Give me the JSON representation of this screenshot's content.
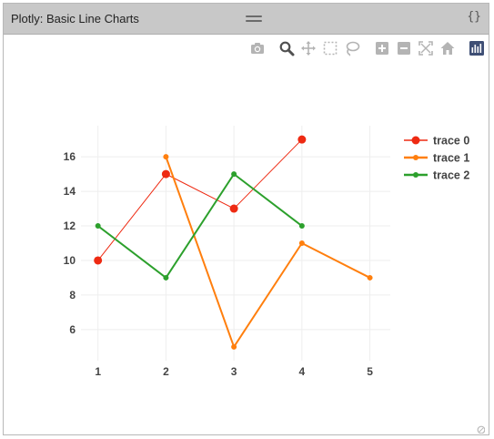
{
  "window": {
    "title": "Plotly: Basic Line Charts",
    "code_toggle_label": "{}"
  },
  "modebar": {
    "buttons": [
      {
        "name": "camera-icon",
        "label": "Download plot as a png"
      },
      {
        "name": "zoom-icon",
        "label": "Zoom"
      },
      {
        "name": "pan-icon",
        "label": "Pan"
      },
      {
        "name": "box-select-icon",
        "label": "Box Select"
      },
      {
        "name": "lasso-select-icon",
        "label": "Lasso Select"
      },
      {
        "name": "zoom-in-icon",
        "label": "Zoom in"
      },
      {
        "name": "zoom-out-icon",
        "label": "Zoom out"
      },
      {
        "name": "autoscale-icon",
        "label": "Autoscale"
      },
      {
        "name": "reset-axes-icon",
        "label": "Reset axes"
      },
      {
        "name": "plotly-logo-icon",
        "label": "Produced with Plotly"
      }
    ]
  },
  "chart_data": {
    "type": "line",
    "xlim": [
      0.75,
      5.3
    ],
    "ylim": [
      4.2,
      17.8
    ],
    "x_ticks": [
      1,
      2,
      3,
      4,
      5
    ],
    "y_ticks": [
      6,
      8,
      10,
      12,
      14,
      16
    ],
    "grid": true,
    "legend_position": "top-right",
    "series": [
      {
        "name": "trace 0",
        "color": "#ee2a12",
        "line_width": 1,
        "marker_size": 4.5,
        "x": [
          1,
          2,
          3,
          4
        ],
        "y": [
          10,
          15,
          13,
          17
        ]
      },
      {
        "name": "trace 1",
        "color": "#ff7f0e",
        "line_width": 2,
        "marker_size": 3,
        "x": [
          2,
          3,
          4,
          5
        ],
        "y": [
          16,
          5,
          11,
          9
        ]
      },
      {
        "name": "trace 2",
        "color": "#2ca02c",
        "line_width": 2,
        "marker_size": 3,
        "x": [
          1,
          2,
          3,
          4
        ],
        "y": [
          12,
          9,
          15,
          12
        ]
      }
    ]
  }
}
